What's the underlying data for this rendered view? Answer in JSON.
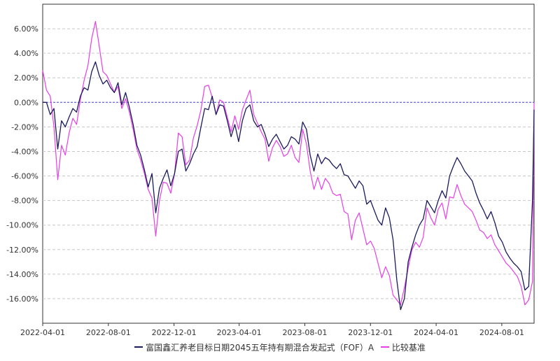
{
  "chart_data": {
    "type": "line",
    "title": "",
    "xlabel": "",
    "ylabel": "",
    "x_range": [
      "2022-04-01",
      "2024-09-30"
    ],
    "ylim": [
      -18.0,
      8.0
    ],
    "grid": true,
    "legend_position": "bottom-center",
    "y_ticks": [
      6,
      4,
      2,
      0,
      -2,
      -4,
      -6,
      -8,
      -10,
      -12,
      -14,
      -16
    ],
    "y_tick_labels": [
      "6.00%",
      "4.00%",
      "2.00%",
      "0.00%",
      "-2.00%",
      "-4.00%",
      "-6.00%",
      "-8.00%",
      "-10.00%",
      "-12.00%",
      "-14.00%",
      "-16.00%"
    ],
    "x_ticks": [
      "2022-04-01",
      "2022-08-01",
      "2022-12-01",
      "2023-04-01",
      "2023-08-01",
      "2023-12-01",
      "2024-04-01",
      "2024-08-01"
    ],
    "x_tick_labels": [
      "2022-04-01",
      "2022-08-01",
      "2022-12-01",
      "2023-04-01",
      "2023-08-01",
      "2023-12-01",
      "2024-04-01",
      "2024-08-01"
    ],
    "zero_line": true,
    "series": [
      {
        "name": "富国鑫汇养老目标日期2045五年持有期混合发起式（FOF）A",
        "color": "#1a1a5c",
        "points": [
          [
            "2022-04-01",
            0.0
          ],
          [
            "2022-04-08",
            0.0
          ],
          [
            "2022-04-15",
            -1.0
          ],
          [
            "2022-04-22",
            -0.5
          ],
          [
            "2022-04-29",
            -3.8
          ],
          [
            "2022-05-06",
            -1.5
          ],
          [
            "2022-05-13",
            -2.0
          ],
          [
            "2022-05-20",
            -1.2
          ],
          [
            "2022-05-27",
            -0.5
          ],
          [
            "2022-06-03",
            -0.8
          ],
          [
            "2022-06-10",
            0.5
          ],
          [
            "2022-06-17",
            1.2
          ],
          [
            "2022-06-24",
            1.0
          ],
          [
            "2022-07-01",
            2.5
          ],
          [
            "2022-07-08",
            3.3
          ],
          [
            "2022-07-15",
            2.2
          ],
          [
            "2022-07-22",
            1.5
          ],
          [
            "2022-07-29",
            1.8
          ],
          [
            "2022-08-05",
            1.2
          ],
          [
            "2022-08-12",
            0.8
          ],
          [
            "2022-08-19",
            1.6
          ],
          [
            "2022-08-26",
            -0.2
          ],
          [
            "2022-09-02",
            0.8
          ],
          [
            "2022-09-09",
            -0.4
          ],
          [
            "2022-09-16",
            -1.8
          ],
          [
            "2022-09-23",
            -3.5
          ],
          [
            "2022-09-30",
            -4.3
          ],
          [
            "2022-10-07",
            -5.5
          ],
          [
            "2022-10-14",
            -6.9
          ],
          [
            "2022-10-21",
            -5.8
          ],
          [
            "2022-10-28",
            -9.0
          ],
          [
            "2022-11-04",
            -7.0
          ],
          [
            "2022-11-11",
            -6.2
          ],
          [
            "2022-11-18",
            -5.5
          ],
          [
            "2022-11-25",
            -6.8
          ],
          [
            "2022-12-02",
            -5.8
          ],
          [
            "2022-12-09",
            -4.0
          ],
          [
            "2022-12-16",
            -3.8
          ],
          [
            "2022-12-23",
            -5.6
          ],
          [
            "2022-12-30",
            -5.0
          ],
          [
            "2023-01-06",
            -4.2
          ],
          [
            "2023-01-13",
            -3.6
          ],
          [
            "2023-01-20",
            -2.0
          ],
          [
            "2023-01-27",
            -0.5
          ],
          [
            "2023-02-03",
            -0.6
          ],
          [
            "2023-02-10",
            0.5
          ],
          [
            "2023-02-17",
            -1.0
          ],
          [
            "2023-02-24",
            -0.2
          ],
          [
            "2023-03-03",
            -0.3
          ],
          [
            "2023-03-10",
            -1.5
          ],
          [
            "2023-03-17",
            -2.8
          ],
          [
            "2023-03-24",
            -1.8
          ],
          [
            "2023-03-31",
            -3.2
          ],
          [
            "2023-04-07",
            -1.5
          ],
          [
            "2023-04-14",
            -0.5
          ],
          [
            "2023-04-21",
            -0.2
          ],
          [
            "2023-04-28",
            -1.5
          ],
          [
            "2023-05-05",
            -2.0
          ],
          [
            "2023-05-12",
            -1.8
          ],
          [
            "2023-05-19",
            -2.6
          ],
          [
            "2023-05-26",
            -3.6
          ],
          [
            "2023-06-02",
            -3.0
          ],
          [
            "2023-06-09",
            -2.6
          ],
          [
            "2023-06-16",
            -3.2
          ],
          [
            "2023-06-23",
            -3.8
          ],
          [
            "2023-06-30",
            -3.5
          ],
          [
            "2023-07-07",
            -2.8
          ],
          [
            "2023-07-14",
            -3.0
          ],
          [
            "2023-07-21",
            -3.4
          ],
          [
            "2023-07-28",
            -1.6
          ],
          [
            "2023-08-04",
            -2.2
          ],
          [
            "2023-08-11",
            -4.3
          ],
          [
            "2023-08-18",
            -5.6
          ],
          [
            "2023-08-25",
            -4.2
          ],
          [
            "2023-09-01",
            -5.0
          ],
          [
            "2023-09-08",
            -4.5
          ],
          [
            "2023-09-15",
            -4.7
          ],
          [
            "2023-09-22",
            -5.1
          ],
          [
            "2023-09-29",
            -5.4
          ],
          [
            "2023-10-06",
            -5.0
          ],
          [
            "2023-10-13",
            -5.9
          ],
          [
            "2023-10-20",
            -6.0
          ],
          [
            "2023-10-27",
            -6.5
          ],
          [
            "2023-11-03",
            -7.0
          ],
          [
            "2023-11-10",
            -6.4
          ],
          [
            "2023-11-17",
            -6.8
          ],
          [
            "2023-11-24",
            -8.3
          ],
          [
            "2023-12-01",
            -8.0
          ],
          [
            "2023-12-08",
            -8.8
          ],
          [
            "2023-12-15",
            -9.6
          ],
          [
            "2023-12-22",
            -10.0
          ],
          [
            "2023-12-29",
            -8.6
          ],
          [
            "2024-01-05",
            -9.4
          ],
          [
            "2024-01-12",
            -11.2
          ],
          [
            "2024-01-19",
            -14.5
          ],
          [
            "2024-01-26",
            -16.9
          ],
          [
            "2024-02-02",
            -16.0
          ],
          [
            "2024-02-09",
            -13.0
          ],
          [
            "2024-02-16",
            -11.8
          ],
          [
            "2024-02-23",
            -10.8
          ],
          [
            "2024-03-01",
            -10.0
          ],
          [
            "2024-03-08",
            -9.5
          ],
          [
            "2024-03-15",
            -8.0
          ],
          [
            "2024-03-22",
            -8.5
          ],
          [
            "2024-03-29",
            -9.0
          ],
          [
            "2024-04-05",
            -8.0
          ],
          [
            "2024-04-12",
            -7.2
          ],
          [
            "2024-04-19",
            -7.8
          ],
          [
            "2024-04-26",
            -6.0
          ],
          [
            "2024-05-03",
            -5.2
          ],
          [
            "2024-05-10",
            -4.5
          ],
          [
            "2024-05-17",
            -5.0
          ],
          [
            "2024-05-24",
            -5.6
          ],
          [
            "2024-05-31",
            -6.0
          ],
          [
            "2024-06-07",
            -6.4
          ],
          [
            "2024-06-14",
            -7.4
          ],
          [
            "2024-06-21",
            -8.2
          ],
          [
            "2024-06-28",
            -8.8
          ],
          [
            "2024-07-05",
            -9.5
          ],
          [
            "2024-07-12",
            -8.9
          ],
          [
            "2024-07-19",
            -9.8
          ],
          [
            "2024-07-26",
            -10.9
          ],
          [
            "2024-08-02",
            -11.4
          ],
          [
            "2024-08-09",
            -12.2
          ],
          [
            "2024-08-16",
            -12.7
          ],
          [
            "2024-08-23",
            -13.1
          ],
          [
            "2024-08-30",
            -13.4
          ],
          [
            "2024-09-06",
            -13.8
          ],
          [
            "2024-09-13",
            -15.3
          ],
          [
            "2024-09-20",
            -15.0
          ],
          [
            "2024-09-27",
            -8.0
          ],
          [
            "2024-09-30",
            -0.6
          ]
        ]
      },
      {
        "name": "比较基准",
        "color": "#e83ee8",
        "points": [
          [
            "2022-04-01",
            2.6
          ],
          [
            "2022-04-08",
            1.0
          ],
          [
            "2022-04-15",
            0.5
          ],
          [
            "2022-04-22",
            -2.0
          ],
          [
            "2022-04-29",
            -6.3
          ],
          [
            "2022-05-06",
            -3.5
          ],
          [
            "2022-05-13",
            -4.3
          ],
          [
            "2022-05-20",
            -2.5
          ],
          [
            "2022-05-27",
            -1.3
          ],
          [
            "2022-06-03",
            -1.8
          ],
          [
            "2022-06-10",
            0.2
          ],
          [
            "2022-06-17",
            1.8
          ],
          [
            "2022-06-24",
            3.0
          ],
          [
            "2022-07-01",
            5.2
          ],
          [
            "2022-07-08",
            6.6
          ],
          [
            "2022-07-15",
            4.6
          ],
          [
            "2022-07-22",
            2.5
          ],
          [
            "2022-07-29",
            2.2
          ],
          [
            "2022-08-05",
            1.5
          ],
          [
            "2022-08-12",
            0.8
          ],
          [
            "2022-08-19",
            1.3
          ],
          [
            "2022-08-26",
            -0.5
          ],
          [
            "2022-09-02",
            0.3
          ],
          [
            "2022-09-09",
            -0.8
          ],
          [
            "2022-09-16",
            -2.2
          ],
          [
            "2022-09-23",
            -3.8
          ],
          [
            "2022-09-30",
            -4.7
          ],
          [
            "2022-10-07",
            -5.8
          ],
          [
            "2022-10-14",
            -7.1
          ],
          [
            "2022-10-21",
            -7.8
          ],
          [
            "2022-10-28",
            -10.9
          ],
          [
            "2022-11-04",
            -8.0
          ],
          [
            "2022-11-11",
            -6.5
          ],
          [
            "2022-11-18",
            -6.6
          ],
          [
            "2022-11-25",
            -7.4
          ],
          [
            "2022-12-02",
            -5.8
          ],
          [
            "2022-12-09",
            -2.5
          ],
          [
            "2022-12-16",
            -2.8
          ],
          [
            "2022-12-23",
            -5.1
          ],
          [
            "2022-12-30",
            -4.7
          ],
          [
            "2023-01-06",
            -2.9
          ],
          [
            "2023-01-13",
            -1.9
          ],
          [
            "2023-01-20",
            -0.6
          ],
          [
            "2023-01-27",
            1.3
          ],
          [
            "2023-02-03",
            1.4
          ],
          [
            "2023-02-10",
            0.4
          ],
          [
            "2023-02-17",
            -1.0
          ],
          [
            "2023-02-24",
            0.2
          ],
          [
            "2023-03-03",
            0.0
          ],
          [
            "2023-03-10",
            -1.2
          ],
          [
            "2023-03-17",
            -2.4
          ],
          [
            "2023-03-24",
            -1.1
          ],
          [
            "2023-03-31",
            -2.2
          ],
          [
            "2023-04-07",
            -0.6
          ],
          [
            "2023-04-14",
            0.2
          ],
          [
            "2023-04-21",
            1.0
          ],
          [
            "2023-04-28",
            -1.0
          ],
          [
            "2023-05-05",
            -1.7
          ],
          [
            "2023-05-12",
            -2.4
          ],
          [
            "2023-05-19",
            -3.0
          ],
          [
            "2023-05-26",
            -4.8
          ],
          [
            "2023-06-02",
            -3.7
          ],
          [
            "2023-06-09",
            -3.1
          ],
          [
            "2023-06-16",
            -3.6
          ],
          [
            "2023-06-23",
            -4.4
          ],
          [
            "2023-06-30",
            -4.2
          ],
          [
            "2023-07-07",
            -3.5
          ],
          [
            "2023-07-14",
            -4.5
          ],
          [
            "2023-07-21",
            -4.9
          ],
          [
            "2023-07-28",
            -2.2
          ],
          [
            "2023-08-04",
            -3.4
          ],
          [
            "2023-08-11",
            -5.6
          ],
          [
            "2023-08-18",
            -7.1
          ],
          [
            "2023-08-25",
            -6.1
          ],
          [
            "2023-09-01",
            -7.1
          ],
          [
            "2023-09-08",
            -6.2
          ],
          [
            "2023-09-15",
            -6.6
          ],
          [
            "2023-09-22",
            -7.4
          ],
          [
            "2023-09-29",
            -7.6
          ],
          [
            "2023-10-06",
            -7.5
          ],
          [
            "2023-10-13",
            -8.9
          ],
          [
            "2023-10-20",
            -9.1
          ],
          [
            "2023-10-27",
            -11.2
          ],
          [
            "2023-11-03",
            -9.6
          ],
          [
            "2023-11-10",
            -9.0
          ],
          [
            "2023-11-17",
            -10.3
          ],
          [
            "2023-11-24",
            -11.6
          ],
          [
            "2023-12-01",
            -11.3
          ],
          [
            "2023-12-08",
            -11.9
          ],
          [
            "2023-12-15",
            -13.1
          ],
          [
            "2023-12-22",
            -14.3
          ],
          [
            "2023-12-29",
            -13.4
          ],
          [
            "2024-01-05",
            -14.1
          ],
          [
            "2024-01-12",
            -15.7
          ],
          [
            "2024-01-19",
            -16.1
          ],
          [
            "2024-01-26",
            -16.5
          ],
          [
            "2024-02-02",
            -15.1
          ],
          [
            "2024-02-09",
            -13.5
          ],
          [
            "2024-02-16",
            -12.0
          ],
          [
            "2024-02-23",
            -11.4
          ],
          [
            "2024-03-01",
            -11.8
          ],
          [
            "2024-03-08",
            -11.0
          ],
          [
            "2024-03-15",
            -8.6
          ],
          [
            "2024-03-22",
            -9.4
          ],
          [
            "2024-03-29",
            -10.0
          ],
          [
            "2024-04-05",
            -8.7
          ],
          [
            "2024-04-12",
            -8.2
          ],
          [
            "2024-04-19",
            -9.5
          ],
          [
            "2024-04-26",
            -7.7
          ],
          [
            "2024-05-03",
            -7.8
          ],
          [
            "2024-05-10",
            -6.7
          ],
          [
            "2024-05-17",
            -7.6
          ],
          [
            "2024-05-24",
            -8.3
          ],
          [
            "2024-05-31",
            -8.6
          ],
          [
            "2024-06-07",
            -8.9
          ],
          [
            "2024-06-14",
            -9.6
          ],
          [
            "2024-06-21",
            -10.4
          ],
          [
            "2024-06-28",
            -10.6
          ],
          [
            "2024-07-05",
            -11.1
          ],
          [
            "2024-07-12",
            -10.8
          ],
          [
            "2024-07-19",
            -11.6
          ],
          [
            "2024-07-26",
            -12.1
          ],
          [
            "2024-08-02",
            -12.6
          ],
          [
            "2024-08-09",
            -13.1
          ],
          [
            "2024-08-16",
            -13.4
          ],
          [
            "2024-08-23",
            -13.8
          ],
          [
            "2024-08-30",
            -14.2
          ],
          [
            "2024-09-06",
            -15.0
          ],
          [
            "2024-09-13",
            -16.5
          ],
          [
            "2024-09-20",
            -16.1
          ],
          [
            "2024-09-27",
            -14.6
          ],
          [
            "2024-09-30",
            0.0
          ]
        ]
      }
    ]
  },
  "legend": {
    "items": [
      {
        "label": "富国鑫汇养老目标日期2045五年持有期混合发起式（FOF）A",
        "color": "#1a1a5c"
      },
      {
        "label": "比较基准",
        "color": "#e83ee8"
      }
    ]
  }
}
